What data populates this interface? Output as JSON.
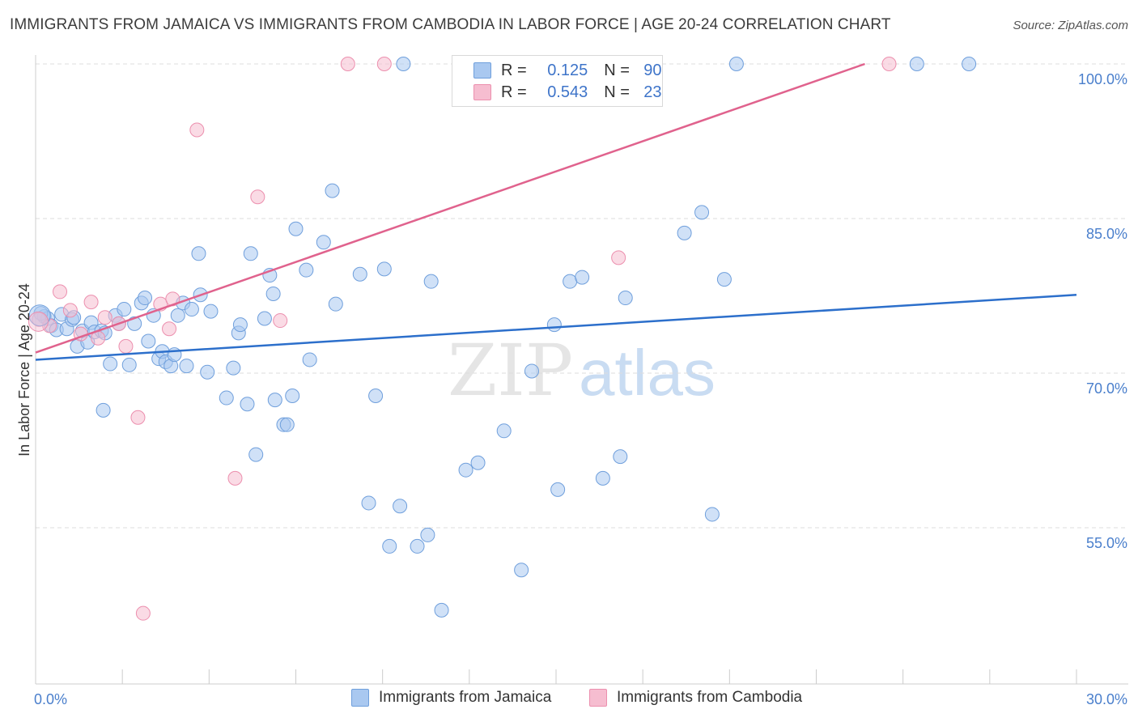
{
  "title": "IMMIGRANTS FROM JAMAICA VS IMMIGRANTS FROM CAMBODIA IN LABOR FORCE | AGE 20-24 CORRELATION CHART",
  "source": "Source: ZipAtlas.com",
  "watermark": {
    "zip": "ZIP",
    "atlas": "atlas"
  },
  "legend": {
    "jamaica": {
      "r_label": "R =",
      "r_value": "0.125",
      "n_label": "N =",
      "n_value": "90"
    },
    "cambodia": {
      "r_label": "R =",
      "r_value": "0.543",
      "n_label": "N =",
      "n_value": "23"
    }
  },
  "bottom_legend": {
    "jamaica": "Immigrants from Jamaica",
    "cambodia": "Immigrants from Cambodia"
  },
  "colors": {
    "jamaica_fill": "#a9c8f0",
    "jamaica_stroke": "#6f9fdc",
    "jamaica_line": "#2c6fcb",
    "cambodia_fill": "#f6bdd0",
    "cambodia_stroke": "#ec8fae",
    "cambodia_line": "#e0628d",
    "tick_text": "#4a7fcc",
    "grid": "#dddddd"
  },
  "chart_data": {
    "type": "scatter",
    "title": "IMMIGRANTS FROM JAMAICA VS IMMIGRANTS FROM CAMBODIA IN LABOR FORCE | AGE 20-24 CORRELATION CHART",
    "xlabel": "",
    "ylabel": "In Labor Force | Age 20-24",
    "xlim": [
      0,
      30
    ],
    "ylim": [
      40,
      102
    ],
    "x_tick_labels": [
      {
        "value": 0,
        "label": "0.0%"
      },
      {
        "value": 30,
        "label": "30.0%"
      }
    ],
    "y_tick_labels": [
      {
        "value": 100,
        "label": "100.0%"
      },
      {
        "value": 85,
        "label": "85.0%"
      },
      {
        "value": 70,
        "label": "70.0%"
      },
      {
        "value": 55,
        "label": "55.0%"
      }
    ],
    "series": [
      {
        "name": "Immigrants from Jamaica",
        "R": 0.125,
        "N": 90,
        "trend": {
          "x": [
            0,
            30
          ],
          "y": [
            71.3,
            77.6
          ]
        },
        "points": [
          [
            0.25,
            75.5
          ],
          [
            0.35,
            75.3
          ],
          [
            0.45,
            74.6
          ],
          [
            0.6,
            74.2
          ],
          [
            0.75,
            75.7
          ],
          [
            0.9,
            74.3
          ],
          [
            1.05,
            75.2
          ],
          [
            1.2,
            72.6
          ],
          [
            1.35,
            74.1
          ],
          [
            1.5,
            73.0
          ],
          [
            1.6,
            74.9
          ],
          [
            1.7,
            74.0
          ],
          [
            1.9,
            74.1
          ],
          [
            1.95,
            66.4
          ],
          [
            2.15,
            70.9
          ],
          [
            2.3,
            75.6
          ],
          [
            2.4,
            74.8
          ],
          [
            2.55,
            76.2
          ],
          [
            2.7,
            70.8
          ],
          [
            2.85,
            74.8
          ],
          [
            3.05,
            76.8
          ],
          [
            3.15,
            77.3
          ],
          [
            3.25,
            73.1
          ],
          [
            3.4,
            75.6
          ],
          [
            3.55,
            71.4
          ],
          [
            3.65,
            72.1
          ],
          [
            3.75,
            71.1
          ],
          [
            3.9,
            70.7
          ],
          [
            4.0,
            71.8
          ],
          [
            4.1,
            75.6
          ],
          [
            4.25,
            76.8
          ],
          [
            4.35,
            70.7
          ],
          [
            4.5,
            76.2
          ],
          [
            4.7,
            81.6
          ],
          [
            4.75,
            77.6
          ],
          [
            4.95,
            70.1
          ],
          [
            5.05,
            76.0
          ],
          [
            5.5,
            67.6
          ],
          [
            5.7,
            70.5
          ],
          [
            5.85,
            73.9
          ],
          [
            5.9,
            74.7
          ],
          [
            6.1,
            67.0
          ],
          [
            6.2,
            81.6
          ],
          [
            6.35,
            62.1
          ],
          [
            6.6,
            75.3
          ],
          [
            6.75,
            79.5
          ],
          [
            6.85,
            77.7
          ],
          [
            6.9,
            67.4
          ],
          [
            7.15,
            65.0
          ],
          [
            7.25,
            65.0
          ],
          [
            7.4,
            67.8
          ],
          [
            7.5,
            84.0
          ],
          [
            7.8,
            80.0
          ],
          [
            7.9,
            71.3
          ],
          [
            8.3,
            82.7
          ],
          [
            8.55,
            87.7
          ],
          [
            8.65,
            76.7
          ],
          [
            9.35,
            79.6
          ],
          [
            9.6,
            57.4
          ],
          [
            9.8,
            67.8
          ],
          [
            10.05,
            80.1
          ],
          [
            10.2,
            53.2
          ],
          [
            10.5,
            57.1
          ],
          [
            10.6,
            100.0
          ],
          [
            11.0,
            53.2
          ],
          [
            11.3,
            54.3
          ],
          [
            11.4,
            78.9
          ],
          [
            11.7,
            47.0
          ],
          [
            12.4,
            60.6
          ],
          [
            12.75,
            61.3
          ],
          [
            13.5,
            64.4
          ],
          [
            14.0,
            50.9
          ],
          [
            14.3,
            70.2
          ],
          [
            14.95,
            74.7
          ],
          [
            15.05,
            58.7
          ],
          [
            15.4,
            78.9
          ],
          [
            15.75,
            79.3
          ],
          [
            16.35,
            59.8
          ],
          [
            16.85,
            61.9
          ],
          [
            17.0,
            77.3
          ],
          [
            18.7,
            83.6
          ],
          [
            19.2,
            85.6
          ],
          [
            19.5,
            56.3
          ],
          [
            19.85,
            79.1
          ],
          [
            20.2,
            100.0
          ],
          [
            25.4,
            100.0
          ],
          [
            26.9,
            100.0
          ],
          [
            0.15,
            75.8
          ],
          [
            1.1,
            75.4
          ],
          [
            2.0,
            73.9
          ]
        ]
      },
      {
        "name": "Immigrants from Cambodia",
        "R": 0.543,
        "N": 23,
        "trend": {
          "x": [
            0,
            23.9
          ],
          "y": [
            72.0,
            100.0
          ]
        },
        "points": [
          [
            0.1,
            75.2
          ],
          [
            0.4,
            74.6
          ],
          [
            0.7,
            77.9
          ],
          [
            1.0,
            76.1
          ],
          [
            1.3,
            73.8
          ],
          [
            1.6,
            76.9
          ],
          [
            1.8,
            73.4
          ],
          [
            2.0,
            75.4
          ],
          [
            2.4,
            74.8
          ],
          [
            2.6,
            72.6
          ],
          [
            2.95,
            65.7
          ],
          [
            3.1,
            46.7
          ],
          [
            3.6,
            76.7
          ],
          [
            3.85,
            74.3
          ],
          [
            3.95,
            77.2
          ],
          [
            4.65,
            93.6
          ],
          [
            5.75,
            59.8
          ],
          [
            6.4,
            87.1
          ],
          [
            7.05,
            75.1
          ],
          [
            9.0,
            100.0
          ],
          [
            10.05,
            100.0
          ],
          [
            16.8,
            81.2
          ],
          [
            24.6,
            100.0
          ]
        ]
      }
    ]
  }
}
